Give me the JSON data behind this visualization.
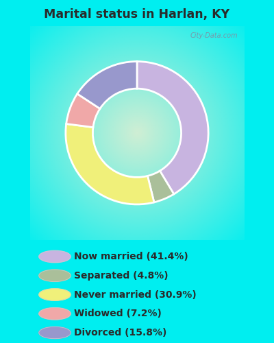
{
  "title": "Marital status in Harlan, KY",
  "categories": [
    "Now married",
    "Separated",
    "Never married",
    "Widowed",
    "Divorced"
  ],
  "values": [
    41.4,
    4.8,
    30.9,
    7.2,
    15.8
  ],
  "colors": [
    "#c8b4e0",
    "#aabf9a",
    "#f0f07a",
    "#f0a8a8",
    "#9898cc"
  ],
  "bg_cyan": "#00eef0",
  "bg_chart_center": "#c8e8cc",
  "bg_chart_edge": "#e8f8ea",
  "title_color": "#2a2a2a",
  "legend_text_color": "#2a2a2a",
  "watermark": "City-Data.com",
  "donut_width": 0.38,
  "startangle": 90
}
